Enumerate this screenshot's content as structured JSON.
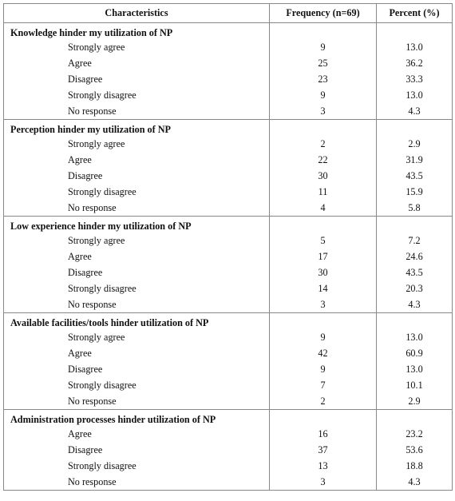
{
  "headers": {
    "characteristics": "Characteristics",
    "frequency": "Frequency (n=69)",
    "percent": "Percent (%)"
  },
  "sections": [
    {
      "title": "Knowledge hinder my utilization of NP",
      "rows": [
        {
          "label": "Strongly agree",
          "frequency": "9",
          "percent": "13.0"
        },
        {
          "label": "Agree",
          "frequency": "25",
          "percent": "36.2"
        },
        {
          "label": "Disagree",
          "frequency": "23",
          "percent": "33.3"
        },
        {
          "label": "Strongly disagree",
          "frequency": "9",
          "percent": "13.0"
        },
        {
          "label": "No response",
          "frequency": "3",
          "percent": "4.3"
        }
      ]
    },
    {
      "title": "Perception hinder my utilization of NP",
      "rows": [
        {
          "label": "Strongly agree",
          "frequency": "2",
          "percent": "2.9"
        },
        {
          "label": "Agree",
          "frequency": "22",
          "percent": "31.9"
        },
        {
          "label": "Disagree",
          "frequency": "30",
          "percent": "43.5"
        },
        {
          "label": "Strongly disagree",
          "frequency": "11",
          "percent": "15.9"
        },
        {
          "label": "No response",
          "frequency": "4",
          "percent": "5.8"
        }
      ]
    },
    {
      "title": "Low experience hinder my utilization of NP",
      "rows": [
        {
          "label": "Strongly agree",
          "frequency": "5",
          "percent": "7.2"
        },
        {
          "label": "Agree",
          "frequency": "17",
          "percent": "24.6"
        },
        {
          "label": "Disagree",
          "frequency": "30",
          "percent": "43.5"
        },
        {
          "label": "Strongly disagree",
          "frequency": "14",
          "percent": "20.3"
        },
        {
          "label": "No response",
          "frequency": "3",
          "percent": "4.3"
        }
      ]
    },
    {
      "title": "Available facilities/tools hinder utilization of NP",
      "rows": [
        {
          "label": "Strongly agree",
          "frequency": "9",
          "percent": "13.0"
        },
        {
          "label": "Agree",
          "frequency": "42",
          "percent": "60.9"
        },
        {
          "label": "Disagree",
          "frequency": "9",
          "percent": "13.0"
        },
        {
          "label": "Strongly disagree",
          "frequency": "7",
          "percent": "10.1"
        },
        {
          "label": "No response",
          "frequency": "2",
          "percent": "2.9"
        }
      ]
    },
    {
      "title": "Administration processes hinder utilization of NP",
      "rows": [
        {
          "label": "Agree",
          "frequency": "16",
          "percent": "23.2"
        },
        {
          "label": "Disagree",
          "frequency": "37",
          "percent": "53.6"
        },
        {
          "label": "Strongly disagree",
          "frequency": "13",
          "percent": "18.8"
        },
        {
          "label": "No response",
          "frequency": "3",
          "percent": "4.3"
        }
      ]
    }
  ]
}
